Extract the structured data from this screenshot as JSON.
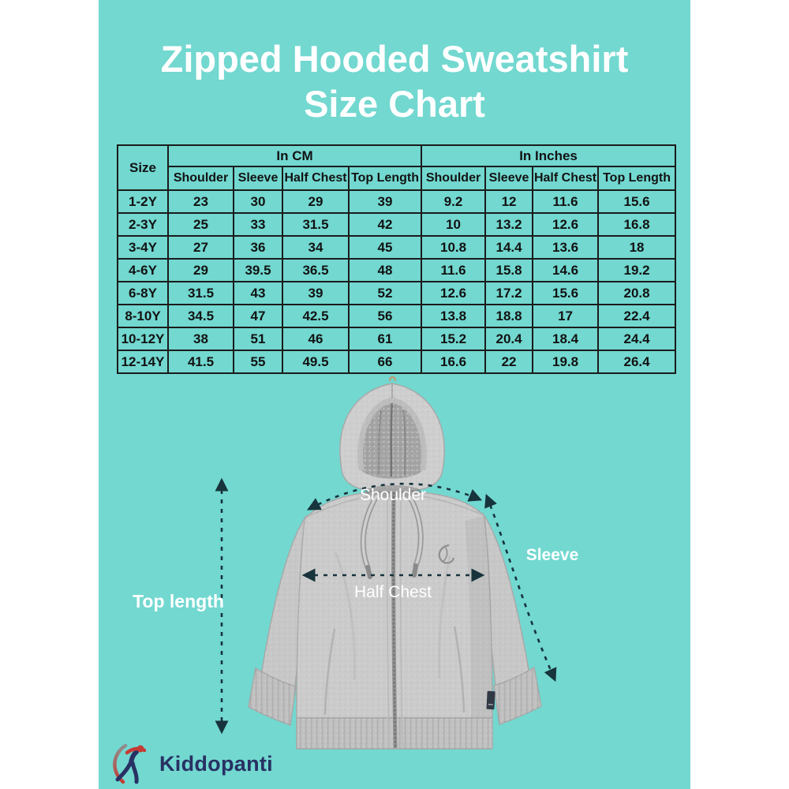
{
  "title": {
    "line1": "Zipped Hooded Sweatshirt",
    "line2": "Size Chart"
  },
  "colors": {
    "background_teal": "#72d8d0",
    "page_margin": "#ffffff",
    "title_text": "#ffffff",
    "table_border": "#1b1b1b",
    "table_text": "#121212",
    "arrow_dash": "#17333c",
    "diagram_label": "#ffffff",
    "hoodie_gray": "#cbcbcb",
    "brand_navy": "#283163",
    "brand_red": "#c63b35"
  },
  "size_table": {
    "corner_header": "Size",
    "unit_groups": [
      {
        "label": "In CM"
      },
      {
        "label": "In Inches"
      }
    ],
    "measure_headers": [
      "Shoulder",
      "Sleeve",
      "Half Chest",
      "Top Length"
    ],
    "rows": [
      {
        "size": "1-2Y",
        "cm": [
          "23",
          "30",
          "29",
          "39"
        ],
        "inches": [
          "9.2",
          "12",
          "11.6",
          "15.6"
        ]
      },
      {
        "size": "2-3Y",
        "cm": [
          "25",
          "33",
          "31.5",
          "42"
        ],
        "inches": [
          "10",
          "13.2",
          "12.6",
          "16.8"
        ]
      },
      {
        "size": "3-4Y",
        "cm": [
          "27",
          "36",
          "34",
          "45"
        ],
        "inches": [
          "10.8",
          "14.4",
          "13.6",
          "18"
        ]
      },
      {
        "size": "4-6Y",
        "cm": [
          "29",
          "39.5",
          "36.5",
          "48"
        ],
        "inches": [
          "11.6",
          "15.8",
          "14.6",
          "19.2"
        ]
      },
      {
        "size": "6-8Y",
        "cm": [
          "31.5",
          "43",
          "39",
          "52"
        ],
        "inches": [
          "12.6",
          "17.2",
          "15.6",
          "20.8"
        ]
      },
      {
        "size": "8-10Y",
        "cm": [
          "34.5",
          "47",
          "42.5",
          "56"
        ],
        "inches": [
          "13.8",
          "18.8",
          "17",
          "22.4"
        ]
      },
      {
        "size": "10-12Y",
        "cm": [
          "38",
          "51",
          "46",
          "61"
        ],
        "inches": [
          "15.2",
          "20.4",
          "18.4",
          "24.4"
        ]
      },
      {
        "size": "12-14Y",
        "cm": [
          "41.5",
          "55",
          "49.5",
          "66"
        ],
        "inches": [
          "16.6",
          "22",
          "19.8",
          "26.4"
        ]
      }
    ]
  },
  "diagram": {
    "labels": {
      "shoulder": "Shoulder",
      "sleeve": "Sleeve",
      "half_chest": "Half Chest",
      "top_length": "Top length"
    }
  },
  "brand": {
    "name": "Kiddopanti"
  }
}
